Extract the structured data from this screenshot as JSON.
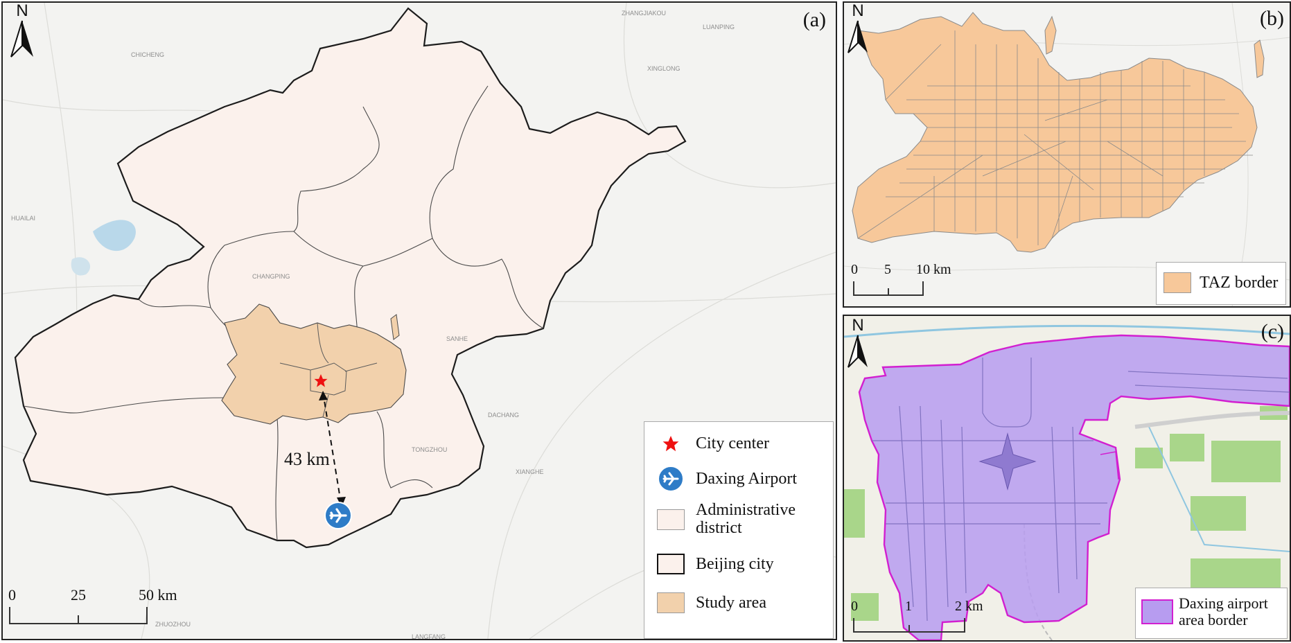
{
  "panels": {
    "a": {
      "label": "(a)"
    },
    "b": {
      "label": "(b)"
    },
    "c": {
      "label": "(c)"
    }
  },
  "north_arrow": {
    "letter": "N"
  },
  "panel_a": {
    "distance_label": "43 km",
    "scale": {
      "ticks": [
        "0",
        "25",
        "50 km"
      ]
    },
    "legend": {
      "items": [
        {
          "label": "City center",
          "symbol": "red-star"
        },
        {
          "label": "Daxing Airport",
          "symbol": "airport-icon"
        },
        {
          "label": "Administrative district",
          "line1": "Administrative",
          "line2": "district",
          "symbol": "swatch"
        },
        {
          "label": "Beijing city",
          "symbol": "swatch"
        },
        {
          "label": "Study area",
          "symbol": "swatch"
        }
      ]
    },
    "basemap_labels": [
      "ZHANGJIAKOU",
      "CHICHENG",
      "HUAILAI",
      "LANGFANG",
      "DACHANG",
      "XIANGHE",
      "ZHUOZHOU",
      "XINGLONG",
      "LUANPING",
      "SANHE",
      "CHANGPING",
      "TONGZHOU"
    ]
  },
  "panel_b": {
    "scale": {
      "ticks": [
        "0",
        "5",
        "10 km"
      ]
    },
    "legend": {
      "label": "TAZ border"
    }
  },
  "panel_c": {
    "scale": {
      "ticks": [
        "0",
        "1",
        "2 km"
      ]
    },
    "legend": {
      "line1": "Daxing airport",
      "line2": "area border"
    }
  },
  "colors": {
    "district_fill": "#fbf1ec",
    "study_fill": "#f2d1ac",
    "taz_fill": "#f7c89a",
    "airport_fill": "#b79cf0",
    "airport_border": "#d21fd0",
    "star": "#ee1111",
    "airport_icon": "#2e7cc7",
    "basemap": "#f3f3f1",
    "water": "#b9d8ea",
    "green": "#a9d68a"
  }
}
